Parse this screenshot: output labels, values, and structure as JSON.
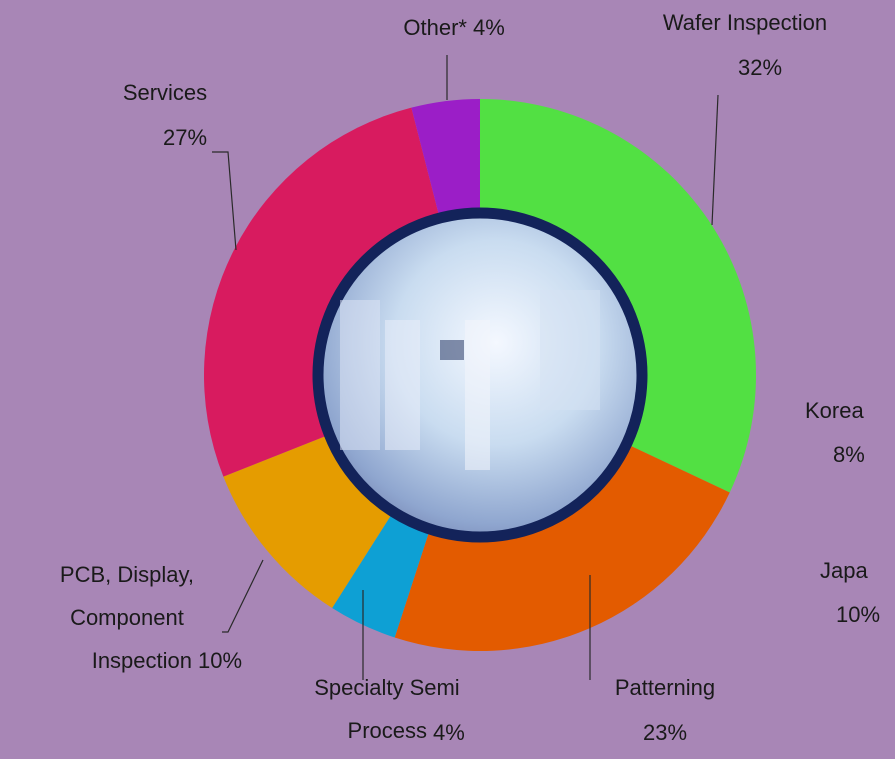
{
  "chart_data": {
    "type": "donut",
    "categories": [
      "Wafer Inspection",
      "Patterning",
      "Specialty Semi Process",
      "PCB, Display, Component Inspection",
      "Services",
      "Other*"
    ],
    "values": [
      32,
      23,
      4,
      10,
      27,
      4
    ],
    "value_labels": [
      "32%",
      "23%",
      "4%",
      "10%",
      "27%",
      "4%"
    ],
    "colors": [
      "#52e043",
      "#e35b00",
      "#0ea0d4",
      "#e59c00",
      "#d81b5f",
      "#9b1ec7"
    ]
  },
  "extra_labels": [
    "Korea",
    "8%",
    "Japa",
    "10%"
  ]
}
